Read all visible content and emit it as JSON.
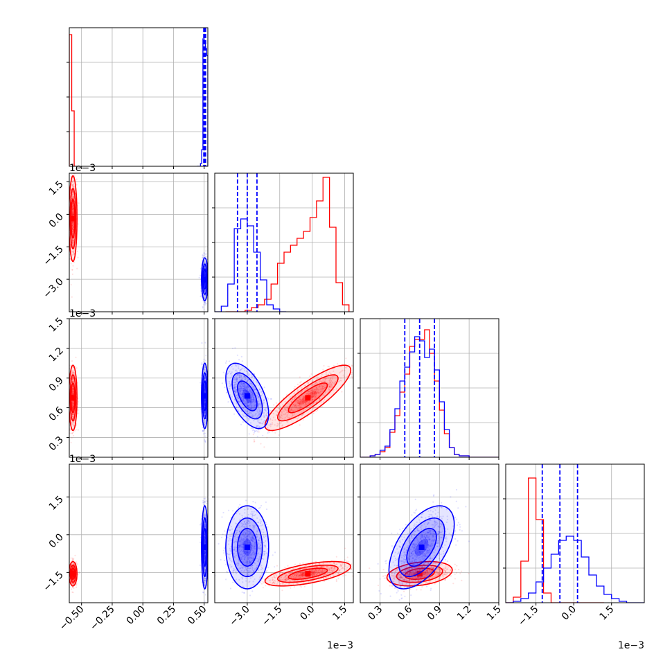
{
  "chart_data": {
    "type": "corner",
    "colors": {
      "red": "#ff0000",
      "blue": "#0000ff",
      "grid": "#b0b0b0"
    },
    "parameters": [
      {
        "range": [
          -0.6,
          0.53
        ],
        "ticks": [
          -0.5,
          -0.25,
          0.0,
          0.25,
          0.5
        ],
        "tick_labels": [
          "−0.50",
          "−0.25",
          "0.00",
          "0.25",
          "0.50"
        ],
        "offset": ""
      },
      {
        "range": [
          -4.5,
          1.9
        ],
        "ticks": [
          -3.0,
          -1.5,
          0.0,
          1.5
        ],
        "tick_labels": [
          "−3.0",
          "−1.5",
          "0.0",
          "1.5"
        ],
        "offset": "1e−3"
      },
      {
        "range": [
          0.1,
          1.5
        ],
        "ticks": [
          0.3,
          0.6,
          0.9,
          1.2,
          1.5
        ],
        "tick_labels": [
          "0.3",
          "0.6",
          "0.9",
          "1.2",
          "1.5"
        ],
        "offset": "1e−3"
      },
      {
        "range": [
          -2.7,
          2.8
        ],
        "ticks": [
          -1.5,
          0.0,
          1.5
        ],
        "tick_labels": [
          "−1.5",
          "0.0",
          "1.5"
        ],
        "offset": "1e−3"
      }
    ],
    "quantiles_blue": [
      [
        0.497,
        0.505,
        0.512
      ],
      [
        -3.45,
        -3.0,
        -2.55
      ],
      [
        0.55,
        0.7,
        0.85
      ],
      [
        -1.25,
        -0.55,
        0.15
      ]
    ],
    "series": [
      {
        "color": "red",
        "means": [
          -0.57,
          -0.2,
          0.7,
          -1.55
        ],
        "sds": [
          0.015,
          0.9,
          0.15,
          0.22
        ],
        "corr": {
          "1-2": 0.85,
          "1-3": 0.6,
          "2-3": 0.3,
          "0-1": 0.0,
          "0-2": 0.0,
          "0-3": 0.0
        },
        "hist": [
          {
            "edges": [
              -0.6,
              -0.58,
              -0.56,
              -0.54
            ],
            "counts": [
              0.95,
              0.4,
              0.0
            ]
          },
          {
            "edges": [
              -4.0,
              -3.7,
              -3.4,
              -3.1,
              -2.8,
              -2.5,
              -2.2,
              -1.9,
              -1.6,
              -1.3,
              -1.0,
              -0.7,
              -0.4,
              -0.1,
              0.2,
              0.5,
              0.8,
              1.1,
              1.4,
              1.7
            ],
            "counts": [
              0.0,
              0.0,
              0.0,
              0.01,
              0.03,
              0.05,
              0.09,
              0.2,
              0.35,
              0.43,
              0.48,
              0.53,
              0.58,
              0.68,
              0.8,
              0.97,
              0.61,
              0.21,
              0.05
            ]
          },
          {
            "edges": [
              0.1,
              0.2,
              0.25,
              0.3,
              0.35,
              0.4,
              0.45,
              0.5,
              0.55,
              0.6,
              0.65,
              0.7,
              0.75,
              0.8,
              0.85,
              0.9,
              0.95,
              1.0,
              1.05,
              1.1,
              1.2,
              1.5
            ],
            "counts": [
              0.0,
              0.01,
              0.02,
              0.04,
              0.07,
              0.18,
              0.3,
              0.47,
              0.6,
              0.8,
              0.85,
              0.85,
              0.92,
              0.75,
              0.55,
              0.34,
              0.17,
              0.07,
              0.02,
              0.01,
              0.0
            ]
          },
          {
            "edges": [
              -2.7,
              -2.4,
              -2.1,
              -1.8,
              -1.5,
              -1.2,
              -0.9,
              -0.6,
              -0.3,
              0.0,
              0.3,
              0.6,
              0.9,
              1.2
            ],
            "counts": [
              0.0,
              0.04,
              0.3,
              0.9,
              0.6,
              0.07,
              0.0,
              0.0,
              0.0,
              0.0,
              0.0,
              0.0,
              0.0
            ]
          }
        ]
      },
      {
        "color": "blue",
        "means": [
          0.505,
          -3.0,
          0.72,
          -0.5
        ],
        "sds": [
          0.012,
          0.45,
          0.15,
          0.75
        ],
        "corr": {
          "1-2": -0.55,
          "1-3": 0.0,
          "2-3": 0.55,
          "0-1": 0.0,
          "0-2": 0.0,
          "0-3": 0.0
        },
        "hist": [
          {
            "edges": [
              0.44,
              0.47,
              0.48,
              0.49,
              0.5,
              0.51,
              0.52,
              0.53
            ],
            "counts": [
              0.0,
              0.02,
              0.12,
              0.92,
              0.9,
              0.85,
              0.8
            ]
          },
          {
            "edges": [
              -4.5,
              -4.2,
              -3.9,
              -3.6,
              -3.3,
              -3.0,
              -2.7,
              -2.4,
              -2.1,
              -1.8,
              -1.5,
              -1.2
            ],
            "counts": [
              0.0,
              0.04,
              0.2,
              0.6,
              0.67,
              0.62,
              0.43,
              0.23,
              0.05,
              0.02,
              0.0
            ]
          },
          {
            "edges": [
              0.1,
              0.2,
              0.25,
              0.3,
              0.35,
              0.4,
              0.45,
              0.5,
              0.55,
              0.6,
              0.65,
              0.7,
              0.75,
              0.8,
              0.85,
              0.9,
              0.95,
              1.0,
              1.05,
              1.1,
              1.2,
              1.5
            ],
            "counts": [
              0.0,
              0.01,
              0.02,
              0.05,
              0.08,
              0.2,
              0.35,
              0.55,
              0.65,
              0.76,
              0.87,
              0.84,
              0.72,
              0.78,
              0.63,
              0.4,
              0.2,
              0.07,
              0.02,
              0.01,
              0.0
            ]
          },
          {
            "edges": [
              -2.7,
              -2.4,
              -2.1,
              -1.8,
              -1.5,
              -1.2,
              -0.9,
              -0.6,
              -0.3,
              0.0,
              0.3,
              0.6,
              0.9,
              1.2,
              1.5,
              1.8,
              2.1,
              2.4,
              2.8
            ],
            "counts": [
              0.0,
              0.01,
              0.03,
              0.07,
              0.15,
              0.25,
              0.35,
              0.45,
              0.48,
              0.45,
              0.33,
              0.2,
              0.12,
              0.06,
              0.03,
              0.01,
              0.0,
              0.0
            ]
          }
        ]
      }
    ]
  }
}
